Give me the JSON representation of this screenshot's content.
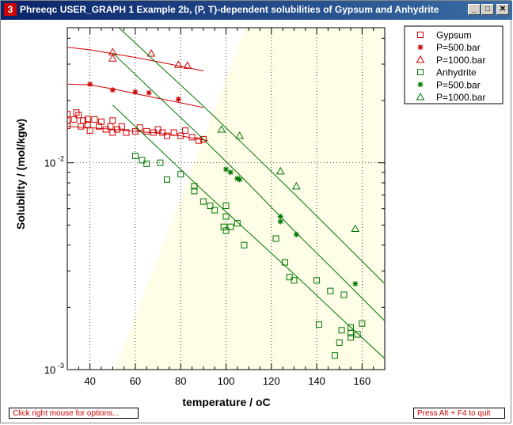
{
  "window": {
    "title": "Phreeqc USER_GRAPH 1 Example 2b, (P, T)-dependent solubilities of Gypsum and Anhydrite",
    "icon_label": "3",
    "minimize_glyph": "_",
    "maximize_glyph": "□",
    "close_glyph": "✕"
  },
  "footer": {
    "left": "Click right mouse for options...",
    "right": "Press Alt + F4 to quit"
  },
  "chart_data": {
    "type": "scatter",
    "xlabel": "temperature / oC",
    "ylabel": "Solubility / (mol/kgw)",
    "xlim": [
      30,
      170
    ],
    "ylim": [
      0.001,
      0.045
    ],
    "yscale": "log",
    "xticks": [
      40,
      60,
      80,
      100,
      120,
      140,
      160
    ],
    "ytick_labels": [
      {
        "value": 0.01,
        "base": "10",
        "exp": "-2"
      },
      {
        "value": 0.001,
        "base": "10",
        "exp": "-3"
      }
    ],
    "grid": true,
    "legend_position": "right",
    "colors": {
      "gypsum": "#cc0000",
      "anhydrite": "#007700",
      "shade": "#fdfde8"
    },
    "series": [
      {
        "name": "Gypsum",
        "marker": "square",
        "color": "#cc0000",
        "points": [
          [
            30,
            0.0172
          ],
          [
            30,
            0.016
          ],
          [
            30,
            0.0151
          ],
          [
            33,
            0.0162
          ],
          [
            34,
            0.0175
          ],
          [
            35,
            0.017
          ],
          [
            36,
            0.015
          ],
          [
            37,
            0.016
          ],
          [
            39,
            0.0163
          ],
          [
            39,
            0.0152
          ],
          [
            40,
            0.0143
          ],
          [
            42,
            0.0162
          ],
          [
            44,
            0.015
          ],
          [
            45,
            0.0158
          ],
          [
            47,
            0.0145
          ],
          [
            49,
            0.015
          ],
          [
            50,
            0.014
          ],
          [
            50,
            0.016
          ],
          [
            52,
            0.0145
          ],
          [
            54,
            0.015
          ],
          [
            56,
            0.014
          ],
          [
            60,
            0.0142
          ],
          [
            62,
            0.0148
          ],
          [
            65,
            0.0142
          ],
          [
            68,
            0.014
          ],
          [
            70,
            0.0145
          ],
          [
            72,
            0.014
          ],
          [
            74,
            0.0135
          ],
          [
            77,
            0.014
          ],
          [
            80,
            0.0135
          ],
          [
            82,
            0.0143
          ],
          [
            85,
            0.0133
          ],
          [
            88,
            0.0128
          ],
          [
            90,
            0.013
          ]
        ],
        "curve": [
          [
            30,
            0.015
          ],
          [
            40,
            0.0148
          ],
          [
            50,
            0.0145
          ],
          [
            60,
            0.0142
          ],
          [
            70,
            0.0139
          ],
          [
            80,
            0.0135
          ],
          [
            85,
            0.0132
          ],
          [
            92,
            0.0128
          ]
        ]
      },
      {
        "name": "P=500.bar",
        "marker": "star",
        "color": "#cc0000",
        "points": [
          [
            40,
            0.024
          ],
          [
            50,
            0.0225
          ],
          [
            60,
            0.022
          ],
          [
            66,
            0.0218
          ],
          [
            79,
            0.0203
          ]
        ],
        "curve": [
          [
            30,
            0.024
          ],
          [
            40,
            0.0238
          ],
          [
            50,
            0.0228
          ],
          [
            60,
            0.0216
          ],
          [
            70,
            0.0205
          ],
          [
            80,
            0.0195
          ],
          [
            90,
            0.0185
          ]
        ]
      },
      {
        "name": "P=1000.bar",
        "marker": "triangle",
        "color": "#cc0000",
        "points": [
          [
            50,
            0.0343
          ],
          [
            50,
            0.032
          ],
          [
            67,
            0.0338
          ],
          [
            79,
            0.0298
          ],
          [
            83,
            0.0295
          ]
        ],
        "curve": [
          [
            30,
            0.0362
          ],
          [
            40,
            0.0352
          ],
          [
            50,
            0.0337
          ],
          [
            60,
            0.0323
          ],
          [
            70,
            0.0308
          ],
          [
            80,
            0.0293
          ],
          [
            90,
            0.0278
          ]
        ]
      },
      {
        "name": "Anhydrite",
        "marker": "square",
        "color": "#007700",
        "points": [
          [
            60,
            0.0108
          ],
          [
            63,
            0.0103
          ],
          [
            65,
            0.0099
          ],
          [
            71,
            0.01
          ],
          [
            74,
            0.0083
          ],
          [
            80,
            0.0088
          ],
          [
            86,
            0.0077
          ],
          [
            86,
            0.0073
          ],
          [
            90,
            0.0065
          ],
          [
            93,
            0.0062
          ],
          [
            95,
            0.0059
          ],
          [
            99,
            0.0049
          ],
          [
            100,
            0.0062
          ],
          [
            100,
            0.0055
          ],
          [
            100,
            0.0047
          ],
          [
            102,
            0.0049
          ],
          [
            105,
            0.0051
          ],
          [
            108,
            0.004
          ],
          [
            122,
            0.0043
          ],
          [
            126,
            0.0033
          ],
          [
            128,
            0.0028
          ],
          [
            130,
            0.0027
          ],
          [
            140,
            0.0027
          ],
          [
            141,
            0.00165
          ],
          [
            146,
            0.0024
          ],
          [
            148,
            0.00117
          ],
          [
            150,
            0.00135
          ],
          [
            151,
            0.00155
          ],
          [
            152,
            0.0023
          ],
          [
            155,
            0.0015
          ],
          [
            155,
            0.0016
          ],
          [
            155,
            0.00143
          ],
          [
            158,
            0.00148
          ],
          [
            160,
            0.00167
          ]
        ],
        "curve": [
          [
            50,
            0.019
          ],
          [
            70,
            0.0118
          ],
          [
            90,
            0.0073
          ],
          [
            110,
            0.0046
          ],
          [
            130,
            0.0029
          ],
          [
            150,
            0.0018
          ],
          [
            170,
            0.00113
          ]
        ]
      },
      {
        "name": "P=500.bar",
        "marker": "star",
        "color": "#007700",
        "points": [
          [
            100,
            0.0093
          ],
          [
            102,
            0.009
          ],
          [
            105,
            0.0084
          ],
          [
            106,
            0.0083
          ],
          [
            124,
            0.0055
          ],
          [
            124,
            0.0052
          ],
          [
            131,
            0.0045
          ],
          [
            157,
            0.0026
          ]
        ],
        "curve": [
          [
            50,
            0.034
          ],
          [
            70,
            0.021
          ],
          [
            90,
            0.013
          ],
          [
            110,
            0.0079
          ],
          [
            130,
            0.0047
          ],
          [
            150,
            0.00285
          ],
          [
            170,
            0.00172
          ]
        ]
      },
      {
        "name": "P=1000.bar",
        "marker": "triangle",
        "color": "#007700",
        "points": [
          [
            98,
            0.0145
          ],
          [
            106,
            0.0135
          ],
          [
            124,
            0.0091
          ],
          [
            131,
            0.0077
          ],
          [
            157,
            0.0048
          ]
        ],
        "curve": [
          [
            50,
            0.048
          ],
          [
            70,
            0.03
          ],
          [
            90,
            0.0188
          ],
          [
            110,
            0.0116
          ],
          [
            130,
            0.0071
          ],
          [
            150,
            0.0043
          ],
          [
            170,
            0.0026
          ]
        ]
      }
    ]
  }
}
